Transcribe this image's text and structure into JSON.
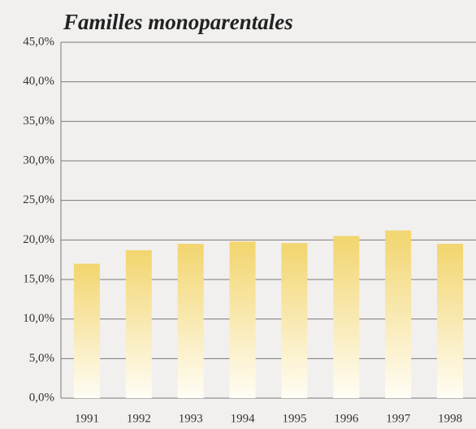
{
  "chart_data": {
    "type": "bar",
    "title": "Familles monoparentales",
    "categories": [
      "1991",
      "1992",
      "1993",
      "1994",
      "1995",
      "1996",
      "1997",
      "1998"
    ],
    "values": [
      17.0,
      18.7,
      19.5,
      19.8,
      19.6,
      20.5,
      21.2,
      19.5
    ],
    "color": "#f2d56e",
    "ylim": [
      0,
      45
    ],
    "yticks": [
      {
        "value": 0,
        "label": "0,0%"
      },
      {
        "value": 5,
        "label": "5,0%"
      },
      {
        "value": 10,
        "label": "10,0%"
      },
      {
        "value": 15,
        "label": "15,0%"
      },
      {
        "value": 20,
        "label": "20,0%"
      },
      {
        "value": 25,
        "label": "25,0%"
      },
      {
        "value": 30,
        "label": "30,0%"
      },
      {
        "value": 35,
        "label": "35,0%"
      },
      {
        "value": 40,
        "label": "40,0%"
      },
      {
        "value": 45,
        "label": "45,0%"
      }
    ],
    "grid": true
  }
}
